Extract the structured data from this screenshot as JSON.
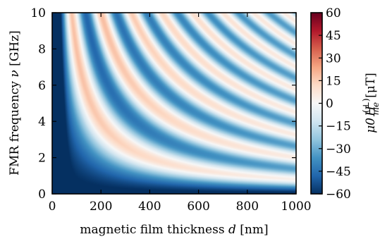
{
  "chart_data": {
    "type": "heatmap",
    "title": "",
    "xlabel": {
      "text": "magnetic film thickness",
      "var": "d",
      "unit": "[nm]"
    },
    "ylabel": {
      "text": "FMR frequency",
      "var": "ν",
      "unit": "[GHz]"
    },
    "xlim": [
      0,
      1000
    ],
    "ylim": [
      0,
      10
    ],
    "xticks": [
      0,
      200,
      400,
      600,
      800,
      1000
    ],
    "yticks": [
      0,
      2,
      4,
      6,
      8,
      10
    ],
    "colorbar": {
      "label": {
        "var": "μ0",
        "field": "H",
        "sup": "(⊥)",
        "sub": "me",
        "unit": "[μT]"
      },
      "range": [
        -60,
        60
      ],
      "ticks": [
        60,
        45,
        30,
        15,
        0,
        -15,
        -30,
        -45,
        -60
      ],
      "colormap": "RdBu_r",
      "colors": [
        "#053061",
        "#2166ac",
        "#4393c3",
        "#92c5de",
        "#d1e5f0",
        "#f7f7f7",
        "#fddbc7",
        "#f4a582",
        "#d6604d",
        "#b2182b",
        "#67001f"
      ]
    },
    "field_description": {
      "pattern": "oscillating bands following nu proportional to 1/d",
      "band_constant_GHz_nm": 1250,
      "approx_band_minima_nu_at_d200_GHz": [
        2.3,
        6.9
      ],
      "approx_band_maxima_nu_at_d400_GHz": [
        6.0,
        9.4
      ],
      "low_frequency_amplitude_uT": -60,
      "high_d_far_field_uT": -10
    }
  }
}
